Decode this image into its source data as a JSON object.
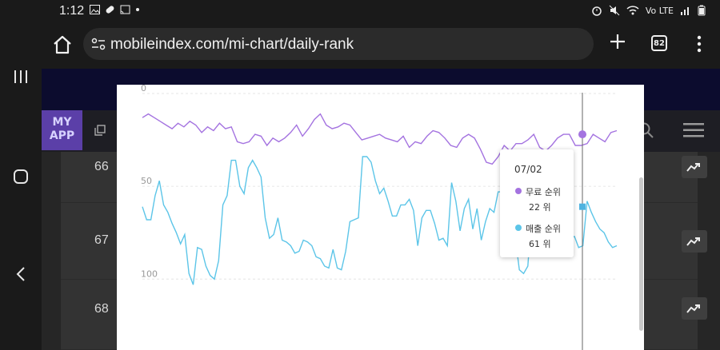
{
  "status_bar": {
    "time": "1:12",
    "network_label": "Vo LTE"
  },
  "browser": {
    "url": "mobileindex.com/mi-chart/daily-rank",
    "tab_count": "82"
  },
  "app": {
    "my_app_line1": "MY",
    "my_app_line2": "APP"
  },
  "rows": [
    {
      "rank": "66"
    },
    {
      "rank": "67"
    },
    {
      "rank": "68"
    }
  ],
  "chart_data": {
    "type": "line",
    "y_axis": {
      "reversed": true,
      "range": [
        0,
        120
      ],
      "ticks": [
        "0",
        "50",
        "100"
      ]
    },
    "grid": true,
    "series": [
      {
        "name": "무료 순위",
        "color": "#a473e0",
        "values": [
          13,
          11,
          13,
          15,
          17,
          19,
          16,
          18,
          15,
          17,
          21,
          18,
          20,
          16,
          19,
          18,
          26,
          27,
          26,
          22,
          23,
          28,
          24,
          26,
          24,
          21,
          17,
          23,
          19,
          14,
          11,
          17,
          19,
          18,
          16,
          17,
          21,
          25,
          24,
          23,
          22,
          24,
          25,
          26,
          23,
          29,
          26,
          27,
          23,
          20,
          21,
          24,
          28,
          29,
          24,
          22,
          24,
          30,
          37,
          38,
          34,
          28,
          31,
          27,
          27,
          25,
          22,
          29,
          31,
          28,
          24,
          22,
          22,
          28,
          28,
          27,
          22,
          24,
          26,
          21,
          20
        ]
      },
      {
        "name": "매출 순위",
        "color": "#5cc5e8",
        "values": [
          61,
          68,
          68,
          55,
          47,
          60,
          64,
          70,
          75,
          81,
          76,
          97,
          103,
          83,
          84,
          93,
          98,
          100,
          90,
          60,
          55,
          36,
          36,
          50,
          54,
          40,
          36,
          40,
          45,
          67,
          78,
          76,
          67,
          79,
          80,
          82,
          86,
          85,
          79,
          80,
          82,
          88,
          89,
          93,
          94,
          84,
          94,
          95,
          85,
          69,
          68,
          67,
          34,
          34,
          37,
          47,
          54,
          51,
          58,
          66,
          66,
          60,
          60,
          57,
          63,
          82,
          67,
          63,
          63,
          70,
          79,
          78,
          82,
          48,
          58,
          74,
          62,
          57,
          73,
          62,
          79,
          69,
          62,
          64,
          53,
          53,
          57,
          67,
          77,
          95,
          97,
          93,
          61,
          70,
          61,
          63,
          66,
          73,
          71,
          80,
          78,
          78,
          77,
          83,
          82,
          58,
          64,
          69,
          73,
          75,
          80,
          83,
          82
        ]
      }
    ],
    "tooltip": {
      "date": "07/02",
      "items": [
        {
          "label": "무료 순위",
          "value": "22 위",
          "color": "#a473e0"
        },
        {
          "label": "매출 순위",
          "value": "61 위",
          "color": "#5cc5e8"
        }
      ]
    }
  }
}
